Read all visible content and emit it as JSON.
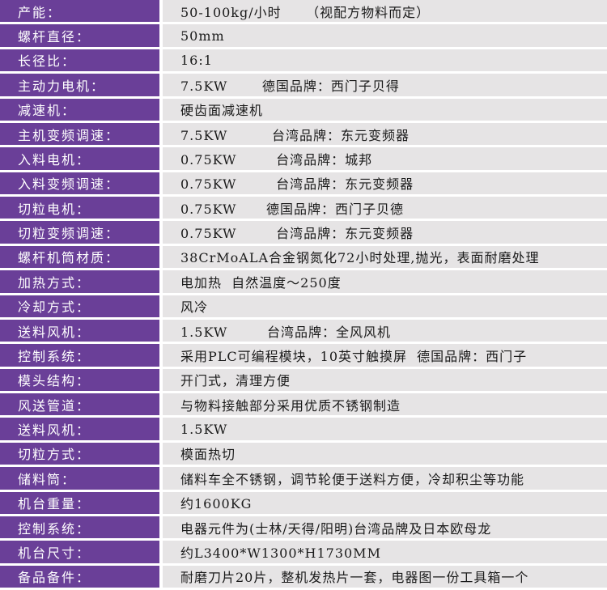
{
  "colors": {
    "label_bg": "#6a3f98",
    "value_bg": "#e6e4e5"
  },
  "rows": [
    {
      "label": "产能：",
      "value": "50-100kg/小时     （视配方物料而定）"
    },
    {
      "label": "螺杆直径：",
      "value": "50mm"
    },
    {
      "label": "长径比：",
      "value": "16:1"
    },
    {
      "label": "主动力电机：",
      "value": "7.5KW       德国品牌：西门子贝得"
    },
    {
      "label": "减速机：",
      "value": "硬齿面减速机"
    },
    {
      "label": "主机变频调速：",
      "value": "7.5KW         台湾品牌：东元变频器"
    },
    {
      "label": "入料电机：",
      "value": "0.75KW        台湾品牌：城邦"
    },
    {
      "label": "入料变频调速：",
      "value": "0.75KW        台湾品牌：东元变频器"
    },
    {
      "label": "切粒电机：",
      "value": "0.75KW      德国品牌：西门子贝德"
    },
    {
      "label": "切粒变频调速：",
      "value": "0.75KW        台湾品牌：东元变频器"
    },
    {
      "label": "螺杆机筒材质：",
      "value": "38CrMoALA合金钢氮化72小时处理,抛光，表面耐磨处理"
    },
    {
      "label": "加热方式：",
      "value": "电加热  自然温度～250度"
    },
    {
      "label": "冷却方式：",
      "value": "风冷"
    },
    {
      "label": "送料风机：",
      "value": "1.5KW        台湾品牌：全风风机"
    },
    {
      "label": "控制系统：",
      "value": "采用PLC可编程模块，10英寸触摸屏  德国品牌：西门子"
    },
    {
      "label": "模头结构：",
      "value": "开门式，清理方便"
    },
    {
      "label": "风送管道：",
      "value": "与物料接触部分采用优质不锈钢制造"
    },
    {
      "label": "送料风机：",
      "value": "1.5KW"
    },
    {
      "label": "切粒方式：",
      "value": "模面热切"
    },
    {
      "label": "储料筒：",
      "value": "储料车全不锈钢，调节轮便于送料方便，冷却积尘等功能"
    },
    {
      "label": "机台重量：",
      "value": "约1600KG"
    },
    {
      "label": "控制系统：",
      "value": "电器元件为(士林/天得/阳明)台湾品牌及日本欧母龙"
    },
    {
      "label": "机台尺寸：",
      "value": "约L3400*W1300*H1730MM"
    },
    {
      "label": "备品备件：",
      "value": "耐磨刀片20片，整机发热片一套，电器图一份工具箱一个"
    }
  ]
}
